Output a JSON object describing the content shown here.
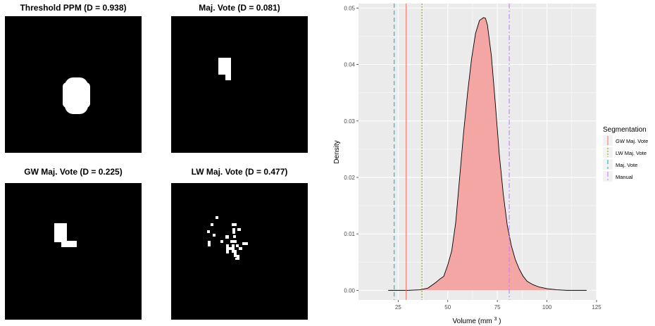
{
  "panels": [
    {
      "title": "Threshold PPM (D = 0.938)"
    },
    {
      "title": "Maj. Vote (D = 0.081)"
    },
    {
      "title": "GW Maj. Vote (D = 0.225)"
    },
    {
      "title": "LW Maj. Vote (D = 0.477)"
    }
  ],
  "chart_data": {
    "type": "area",
    "xlabel": "Volume (mm",
    "xlabel_sup": "3",
    "xlabel_end": ")",
    "ylabel": "Density",
    "xlim": [
      5,
      125
    ],
    "ylim": [
      -0.0017,
      0.0508
    ],
    "x_ticks": [
      25,
      50,
      75,
      100,
      125
    ],
    "x_tick_labels": [
      "25",
      "50",
      "75",
      "100",
      "125"
    ],
    "y_ticks": [
      0.0,
      0.01,
      0.02,
      0.03,
      0.04,
      0.05
    ],
    "y_tick_labels": [
      "0.00",
      "0.01",
      "0.02",
      "0.03",
      "0.04",
      "0.05"
    ],
    "grid": true,
    "background": "#ebebeb",
    "fill_color": "#f4a6a4",
    "density": {
      "x": [
        20,
        25,
        30,
        36,
        40,
        44,
        46,
        48,
        50,
        52,
        54,
        56,
        58,
        60,
        62,
        64,
        66,
        68,
        69,
        70,
        72,
        74,
        76,
        78,
        80,
        82,
        84,
        86,
        88,
        90,
        93,
        96,
        100,
        105,
        110,
        115,
        120
      ],
      "y": [
        0.0,
        0.0,
        0.0,
        0.0001,
        0.0004,
        0.0014,
        0.002,
        0.0025,
        0.0045,
        0.007,
        0.012,
        0.02,
        0.028,
        0.035,
        0.041,
        0.0455,
        0.0478,
        0.0483,
        0.0482,
        0.047,
        0.0415,
        0.033,
        0.024,
        0.017,
        0.0115,
        0.008,
        0.0055,
        0.0038,
        0.0025,
        0.0016,
        0.001,
        0.0006,
        0.0003,
        0.0001,
        0.0,
        0.0,
        0.0
      ]
    },
    "vlines": [
      {
        "name": "GW Maj. Vote",
        "x": 29,
        "color": "#f8766d",
        "dash": ""
      },
      {
        "name": "LW Maj. Vote",
        "x": 37,
        "color": "#7cae00",
        "dash": "2,2"
      },
      {
        "name": "Maj. Vote",
        "x": 23,
        "color": "#00bfc4",
        "dash": "6,4"
      },
      {
        "name": "Manual",
        "x": 81,
        "color": "#c77cff",
        "dash": "7,3,2,3"
      }
    ],
    "legend": {
      "title": "Segmentation",
      "placement": "right",
      "items": [
        "GW Maj. Vote",
        "LW Maj. Vote",
        "Maj. Vote",
        "Manual"
      ]
    }
  }
}
